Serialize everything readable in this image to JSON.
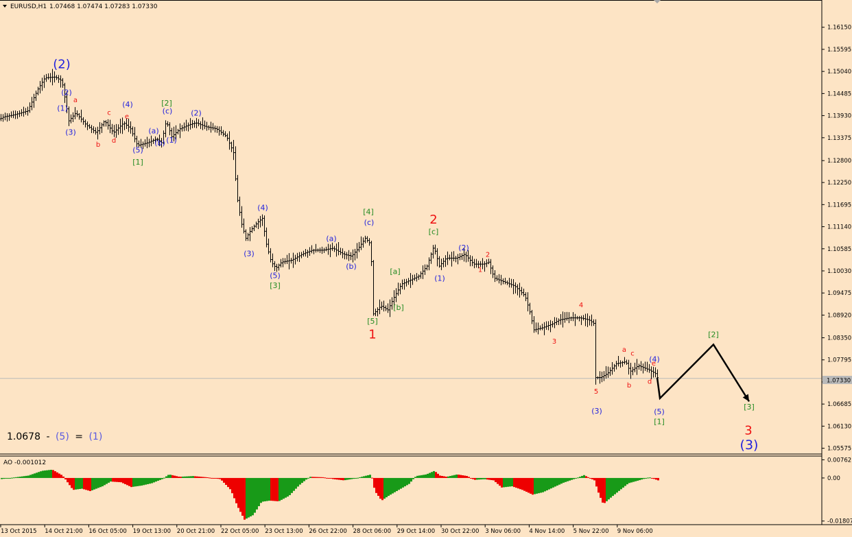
{
  "header": {
    "symbol": "EURUSD,H1",
    "ohlc": "1.07468 1.07474 1.07283 1.07330"
  },
  "colors": {
    "background": "#FDE4C5",
    "bars": "#000000",
    "current_price_line": "#B9B9B9",
    "label_blue": "#2222DD",
    "label_red": "#EE1111",
    "label_green": "#228B22",
    "ao_up": "#189A18",
    "ao_down": "#EE0000"
  },
  "chart_data": [
    {
      "type": "bar",
      "title": "EURUSD,H1",
      "ylim": [
        1.0543,
        1.168
      ],
      "y_ticks": [
        "1.16150",
        "1.15595",
        "1.15040",
        "1.14485",
        "1.13930",
        "1.13375",
        "1.12800",
        "1.12250",
        "1.11695",
        "1.11140",
        "1.10585",
        "1.10030",
        "1.09475",
        "1.08920",
        "1.08350",
        "1.07795",
        "1.07240",
        "1.06685",
        "1.06130",
        "1.05575"
      ],
      "y_tick_values": [
        1.1615,
        1.15595,
        1.1504,
        1.14485,
        1.1393,
        1.13375,
        1.128,
        1.1225,
        1.11695,
        1.1114,
        1.10585,
        1.1003,
        1.09475,
        1.0892,
        1.0835,
        1.07795,
        1.0724,
        1.06685,
        1.0613,
        1.05575
      ],
      "current_price": "1.07330",
      "current_price_value": 1.0733,
      "x_ticks": [
        "13 Oct 2015",
        "14 Oct 21:00",
        "16 Oct 05:00",
        "19 Oct 13:00",
        "20 Oct 21:00",
        "22 Oct 05:00",
        "23 Oct 13:00",
        "26 Oct 22:00",
        "28 Oct 06:00",
        "29 Oct 14:00",
        "30 Oct 22:00",
        "3 Nov 06:00",
        "4 Nov 14:00",
        "5 Nov 22:00",
        "9 Nov 06:00"
      ],
      "price_path": [
        [
          0,
          1.1385
        ],
        [
          5,
          1.139
        ],
        [
          20,
          1.1395
        ],
        [
          40,
          1.1405
        ],
        [
          55,
          1.146
        ],
        [
          65,
          1.1488
        ],
        [
          80,
          1.149
        ],
        [
          90,
          1.148
        ],
        [
          96,
          1.142
        ],
        [
          100,
          1.138
        ],
        [
          110,
          1.14
        ],
        [
          125,
          1.137
        ],
        [
          140,
          1.135
        ],
        [
          152,
          1.138
        ],
        [
          165,
          1.135
        ],
        [
          180,
          1.1375
        ],
        [
          190,
          1.136
        ],
        [
          200,
          1.1318
        ],
        [
          215,
          1.1325
        ],
        [
          228,
          1.1335
        ],
        [
          235,
          1.1325
        ],
        [
          242,
          1.138
        ],
        [
          250,
          1.134
        ],
        [
          262,
          1.136
        ],
        [
          275,
          1.137
        ],
        [
          285,
          1.1375
        ],
        [
          300,
          1.1365
        ],
        [
          315,
          1.136
        ],
        [
          330,
          1.134
        ],
        [
          340,
          1.13
        ],
        [
          345,
          1.119
        ],
        [
          352,
          1.112
        ],
        [
          358,
          1.1085
        ],
        [
          365,
          1.1105
        ],
        [
          375,
          1.1125
        ],
        [
          382,
          1.1135
        ],
        [
          388,
          1.107
        ],
        [
          395,
          1.1025
        ],
        [
          402,
          1.101
        ],
        [
          410,
          1.1025
        ],
        [
          425,
          1.103
        ],
        [
          440,
          1.1045
        ],
        [
          455,
          1.1055
        ],
        [
          470,
          1.1055
        ],
        [
          485,
          1.106
        ],
        [
          500,
          1.1045
        ],
        [
          512,
          1.104
        ],
        [
          522,
          1.106
        ],
        [
          532,
          1.1085
        ],
        [
          540,
          1.107
        ],
        [
          544,
          1.0895
        ],
        [
          555,
          1.0915
        ],
        [
          565,
          1.0905
        ],
        [
          575,
          1.094
        ],
        [
          585,
          1.097
        ],
        [
          598,
          1.098
        ],
        [
          610,
          1.099
        ],
        [
          622,
          1.1015
        ],
        [
          632,
          1.1065
        ],
        [
          640,
          1.1015
        ],
        [
          650,
          1.1035
        ],
        [
          665,
          1.1035
        ],
        [
          677,
          1.1045
        ],
        [
          690,
          1.102
        ],
        [
          705,
          1.102
        ],
        [
          712,
          1.1025
        ],
        [
          720,
          1.0985
        ],
        [
          735,
          1.0975
        ],
        [
          750,
          1.0965
        ],
        [
          765,
          1.094
        ],
        [
          772,
          1.09
        ],
        [
          778,
          1.0855
        ],
        [
          790,
          1.086
        ],
        [
          805,
          1.087
        ],
        [
          815,
          1.088
        ],
        [
          830,
          1.0885
        ],
        [
          845,
          1.0885
        ],
        [
          858,
          1.088
        ],
        [
          866,
          1.087
        ],
        [
          868,
          1.0735
        ],
        [
          875,
          1.0735
        ],
        [
          885,
          1.0745
        ],
        [
          898,
          1.077
        ],
        [
          912,
          1.0775
        ],
        [
          918,
          1.075
        ],
        [
          930,
          1.0765
        ],
        [
          945,
          1.0755
        ],
        [
          955,
          1.0745
        ],
        [
          958,
          1.0735
        ]
      ],
      "projection": [
        [
          958,
          1.0735
        ],
        [
          962,
          1.0683
        ],
        [
          1040,
          1.0818
        ],
        [
          1092,
          1.0675
        ]
      ]
    },
    {
      "type": "bar",
      "title": "AO -0.001012",
      "ylim": [
        -0.0193,
        0.0089
      ],
      "y_ticks": [
        "0.00762",
        "0.00",
        "-0.01807"
      ],
      "y_tick_values": [
        0.00762,
        0.0,
        -0.01807
      ],
      "ao_path": [
        [
          0,
          -0.0005
        ],
        [
          40,
          0.001
        ],
        [
          60,
          0.003
        ],
        [
          75,
          0.0035
        ],
        [
          90,
          0.001
        ],
        [
          105,
          -0.005
        ],
        [
          118,
          -0.0045
        ],
        [
          130,
          -0.0055
        ],
        [
          148,
          -0.0035
        ],
        [
          160,
          -0.0015
        ],
        [
          175,
          -0.0018
        ],
        [
          190,
          -0.0038
        ],
        [
          205,
          -0.0032
        ],
        [
          220,
          -0.0022
        ],
        [
          235,
          -0.0005
        ],
        [
          245,
          0.0015
        ],
        [
          260,
          0.0005
        ],
        [
          280,
          0.0008
        ],
        [
          300,
          0.0003
        ],
        [
          320,
          -0.0005
        ],
        [
          335,
          -0.005
        ],
        [
          345,
          -0.012
        ],
        [
          355,
          -0.0175
        ],
        [
          368,
          -0.0155
        ],
        [
          380,
          -0.01
        ],
        [
          392,
          -0.0095
        ],
        [
          405,
          -0.0098
        ],
        [
          420,
          -0.0075
        ],
        [
          435,
          -0.003
        ],
        [
          450,
          0.0005
        ],
        [
          470,
          0.0003
        ],
        [
          485,
          -0.0005
        ],
        [
          500,
          -0.001
        ],
        [
          515,
          -0.0003
        ],
        [
          530,
          0.0008
        ],
        [
          540,
          0.0015
        ],
        [
          545,
          -0.0055
        ],
        [
          555,
          -0.0095
        ],
        [
          565,
          -0.0075
        ],
        [
          580,
          -0.005
        ],
        [
          595,
          -0.0025
        ],
        [
          605,
          0.0008
        ],
        [
          620,
          0.0015
        ],
        [
          632,
          0.003
        ],
        [
          640,
          0.001
        ],
        [
          650,
          0.0005
        ],
        [
          665,
          0.0015
        ],
        [
          680,
          0.0008
        ],
        [
          690,
          -0.0008
        ],
        [
          705,
          -0.0005
        ],
        [
          718,
          -0.001
        ],
        [
          730,
          -0.004
        ],
        [
          745,
          -0.0035
        ],
        [
          760,
          -0.005
        ],
        [
          775,
          -0.007
        ],
        [
          790,
          -0.006
        ],
        [
          805,
          -0.004
        ],
        [
          820,
          -0.002
        ],
        [
          835,
          -0.0005
        ],
        [
          850,
          0.0012
        ],
        [
          865,
          -0.001
        ],
        [
          872,
          -0.007
        ],
        [
          878,
          -0.011
        ],
        [
          890,
          -0.008
        ],
        [
          905,
          -0.0045
        ],
        [
          915,
          -0.0022
        ],
        [
          930,
          -0.001
        ],
        [
          945,
          0.0003
        ],
        [
          958,
          -0.001
        ]
      ]
    }
  ],
  "wave_labels": {
    "blue": [
      {
        "text": "(2)",
        "at": [
          90,
          1.1512
        ],
        "big": true
      },
      {
        "text": "(2)",
        "at": [
          97,
          1.1445
        ]
      },
      {
        "text": "(1)",
        "at": [
          91,
          1.1405
        ]
      },
      {
        "text": "(3)",
        "at": [
          103,
          1.1345
        ]
      },
      {
        "text": "(4)",
        "at": [
          186,
          1.1415
        ]
      },
      {
        "text": "(5)",
        "at": [
          201,
          1.13
        ]
      },
      {
        "text": "(a)",
        "at": [
          224,
          1.1348
        ]
      },
      {
        "text": "(b)",
        "at": [
          233,
          1.1318
        ]
      },
      {
        "text": "(1)",
        "at": [
          250,
          1.1325
        ]
      },
      {
        "text": "(c)",
        "at": [
          244,
          1.1398
        ]
      },
      {
        "text": "(2)",
        "at": [
          286,
          1.1393
        ]
      },
      {
        "text": "(4)",
        "at": [
          383,
          1.1155
        ]
      },
      {
        "text": "(3)",
        "at": [
          363,
          1.104
        ]
      },
      {
        "text": "(5)",
        "at": [
          401,
          1.0985
        ]
      },
      {
        "text": "(a)",
        "at": [
          483,
          1.1078
        ]
      },
      {
        "text": "(b)",
        "at": [
          512,
          1.1008
        ]
      },
      {
        "text": "(c)",
        "at": [
          538,
          1.1118
        ]
      },
      {
        "text": "(2)",
        "at": [
          676,
          1.1055
        ]
      },
      {
        "text": "(1)",
        "at": [
          641,
          1.0978
        ]
      },
      {
        "text": "(3)",
        "at": [
          870,
          1.0645
        ]
      },
      {
        "text": "(4)",
        "at": [
          954,
          1.0775
        ]
      },
      {
        "text": "(5)",
        "at": [
          961,
          1.0643
        ]
      }
    ],
    "blue_big": [
      {
        "text": "(3)",
        "at": [
          1092,
          1.0555
        ]
      }
    ],
    "red": [
      {
        "text": "a",
        "at": [
          110,
          1.1427
        ]
      },
      {
        "text": "b",
        "at": [
          143,
          1.1315
        ]
      },
      {
        "text": "c",
        "at": [
          159,
          1.1395
        ]
      },
      {
        "text": "d",
        "at": [
          166,
          1.1325
        ]
      },
      {
        "text": "e",
        "at": [
          185,
          1.1385
        ]
      },
      {
        "text": "2",
        "at": [
          711,
          1.1038
        ]
      },
      {
        "text": "1",
        "at": [
          700,
          1.1
        ]
      },
      {
        "text": "4",
        "at": [
          847,
          1.0912
        ]
      },
      {
        "text": "3",
        "at": [
          808,
          1.082
        ]
      },
      {
        "text": "5",
        "at": [
          869,
          1.0695
        ]
      },
      {
        "text": "a",
        "at": [
          910,
          1.08
        ]
      },
      {
        "text": "b",
        "at": [
          917,
          1.071
        ]
      },
      {
        "text": "c",
        "at": [
          922,
          1.079
        ]
      },
      {
        "text": "d",
        "at": [
          947,
          1.072
        ]
      },
      {
        "text": "e",
        "at": [
          953,
          1.0765
        ]
      }
    ],
    "red_big": [
      {
        "text": "1",
        "at": [
          543,
          1.0833
        ]
      },
      {
        "text": "2",
        "at": [
          632,
          1.1122
        ]
      },
      {
        "text": "3",
        "at": [
          1091,
          1.0592
        ]
      }
    ],
    "green": [
      {
        "text": "[2]",
        "at": [
          243,
          1.1418
        ]
      },
      {
        "text": "[1]",
        "at": [
          201,
          1.127
        ]
      },
      {
        "text": "[4]",
        "at": [
          537,
          1.1145
        ]
      },
      {
        "text": "[5]",
        "at": [
          543,
          1.087
        ]
      },
      {
        "text": "[3]",
        "at": [
          401,
          1.096
        ]
      },
      {
        "text": "[a]",
        "at": [
          576,
          1.0995
        ]
      },
      {
        "text": "[b]",
        "at": [
          581,
          1.0905
        ]
      },
      {
        "text": "[c]",
        "at": [
          632,
          1.1095
        ]
      },
      {
        "text": "[2]",
        "at": [
          1040,
          1.0837
        ]
      },
      {
        "text": "[1]",
        "at": [
          961,
          1.0618
        ]
      },
      {
        "text": "[3]",
        "at": [
          1092,
          1.0655
        ]
      }
    ]
  },
  "annotation": {
    "value": "1.0678",
    "dash": "-",
    "left": "(5)",
    "equals": "=",
    "right": "(1)"
  }
}
